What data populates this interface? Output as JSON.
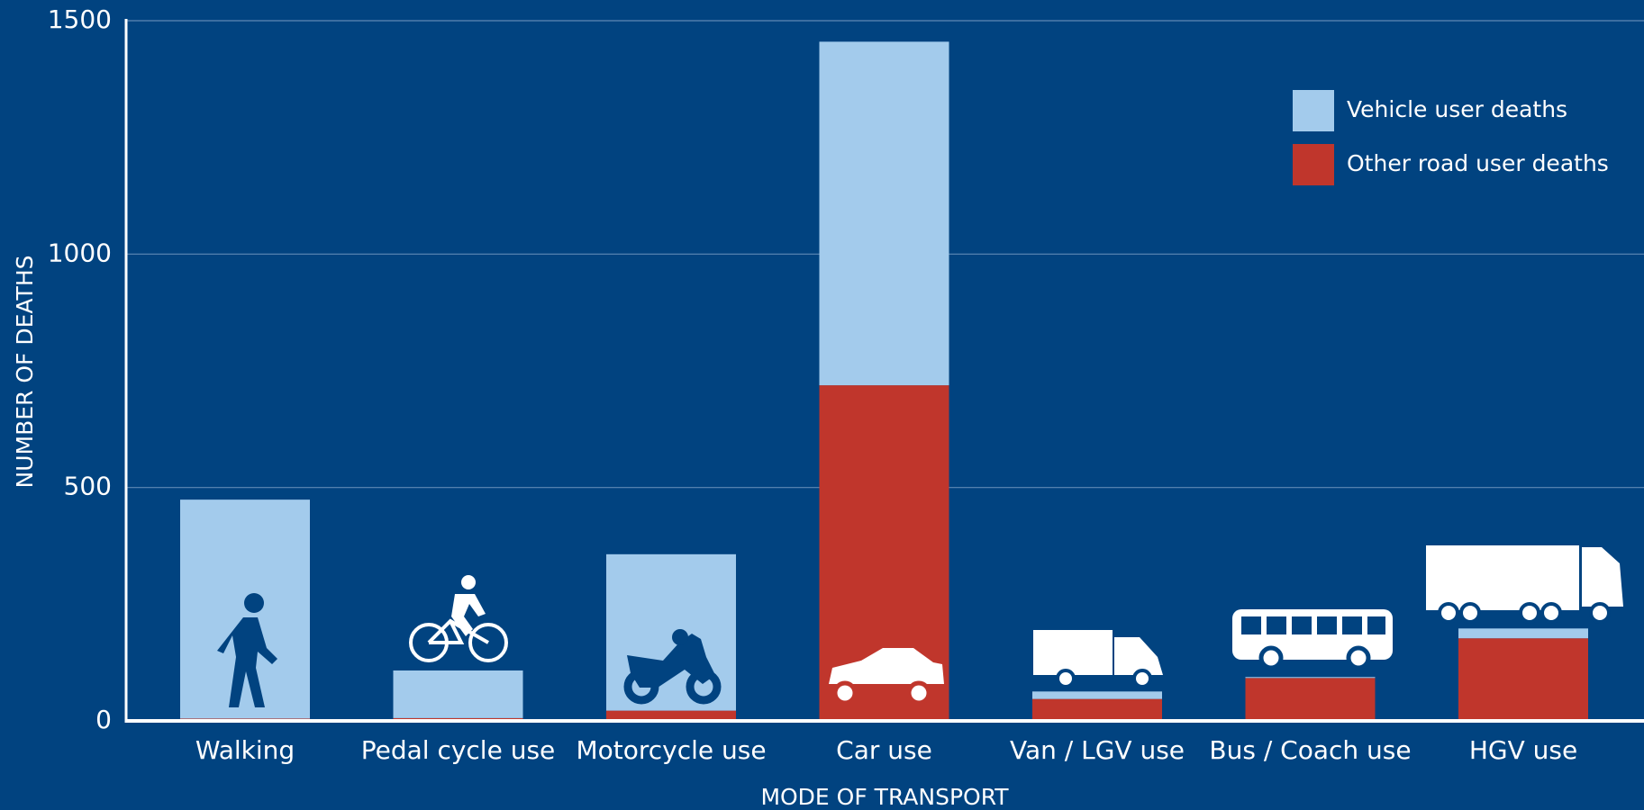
{
  "chart_data": {
    "type": "stacked_bar",
    "categories": [
      "Walking",
      "Pedal cycle use",
      "Motorcycle use",
      "Car use",
      "Van / LGV use",
      "Bus / Coach use",
      "HGV use"
    ],
    "series": [
      {
        "name": "Vehicle user deaths",
        "color": "#a3cbec",
        "values": [
          469,
          102,
          335,
          736,
          16,
          2,
          21
        ]
      },
      {
        "name": "Other road user deaths",
        "color": "#c0362c",
        "values": [
          5,
          6,
          22,
          719,
          47,
          92,
          177
        ]
      }
    ],
    "xlabel": "MODE OF TRANSPORT",
    "ylabel": "NUMBER OF DEATHS",
    "ylim": [
      0,
      1500
    ],
    "yticks": [
      0,
      500,
      1000,
      1500
    ],
    "grid": true,
    "legend": "upper right"
  }
}
